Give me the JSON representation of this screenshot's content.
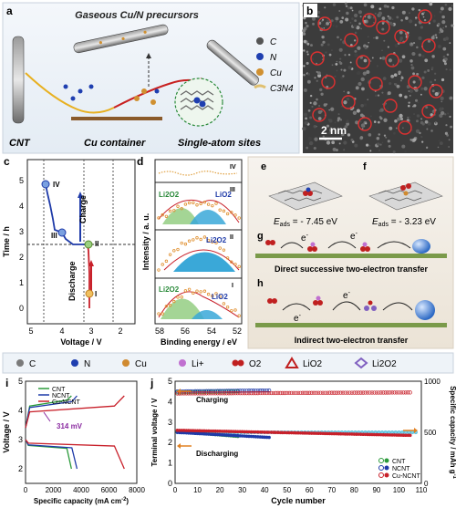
{
  "panel_a": {
    "label": "a",
    "title": "Gaseous Cu/N precursors",
    "cnt_label": "CNT",
    "container_label": "Cu container",
    "sites_label": "Single-atom sites",
    "legend": [
      {
        "symbol": "C",
        "color": "#555555"
      },
      {
        "symbol": "N",
        "color": "#1f3fb0"
      },
      {
        "symbol": "Cu",
        "color": "#d09030"
      },
      {
        "symbol": "C3N4",
        "color": "#e0c070"
      }
    ]
  },
  "panel_b": {
    "label": "b",
    "scale": "2 nm"
  },
  "panel_c": {
    "label": "c",
    "xlabel": "Voltage / V",
    "ylabel": "Time / h",
    "xticks": [
      "5",
      "4",
      "3",
      "2"
    ],
    "yticks": [
      "0",
      "1",
      "2",
      "3",
      "4",
      "5"
    ],
    "charge": "Charge",
    "discharge": "Discharge",
    "points": [
      "IV",
      "III",
      "II",
      "I"
    ]
  },
  "panel_d": {
    "label": "d",
    "xlabel": "Binding energy / eV",
    "ylabel": "Intensity / a. u.",
    "xticks": [
      "58",
      "56",
      "54",
      "52"
    ],
    "stages": [
      "IV",
      "III",
      "II",
      "I"
    ],
    "li2o2": "Li2O2",
    "lio2": "LiO2"
  },
  "panel_e": {
    "label": "e",
    "eads": "E",
    "eads_sub": "ads",
    "eads_value": " = - 7.45 eV"
  },
  "panel_f": {
    "label": "f",
    "eads": "E",
    "eads_sub": "ads",
    "eads_value": " = - 3.23 eV"
  },
  "panel_g": {
    "label": "g",
    "caption": "Direct successive two-electron transfer",
    "e1": "e",
    "e2": "e"
  },
  "panel_h": {
    "label": "h",
    "caption": "Indirect two-electron transfer",
    "e1": "e",
    "e2": "e"
  },
  "legend_row": [
    {
      "name": "C",
      "color": "#7a7a7a"
    },
    {
      "name": "N",
      "color": "#1f3fb0"
    },
    {
      "name": "Cu",
      "color": "#d08a30"
    },
    {
      "name": "Li+",
      "color": "#c070d0"
    },
    {
      "name": "O2",
      "color": "#c02020"
    },
    {
      "name": "LiO2",
      "color": "#c02020"
    },
    {
      "name": "Li2O2",
      "color": "#8060c0"
    }
  ],
  "panel_i": {
    "label": "i",
    "xlabel": "Specific capacity (mA cm",
    "xlabel_sup": "-2",
    "xlabel_end": ")",
    "ylabel": "Voltage / V",
    "annotation": "314 mV",
    "xticks": [
      "0",
      "2000",
      "4000",
      "6000",
      "8000"
    ],
    "yticks": [
      "2",
      "3",
      "4",
      "5"
    ],
    "series": [
      {
        "name": "CNT",
        "color": "#2a9a3a"
      },
      {
        "name": "NCNT",
        "color": "#1e3aa8"
      },
      {
        "name": "Cu-NCNT",
        "color": "#c8202a"
      }
    ]
  },
  "panel_j": {
    "label": "j",
    "xlabel": "Cycle number",
    "ylabel": "Terminal voltage / V",
    "y2label": "Specific capacity / mAh g",
    "y2label_sup": "-1",
    "charging": "Charging",
    "discharging": "Discharging",
    "xticks": [
      "0",
      "10",
      "20",
      "30",
      "40",
      "50",
      "60",
      "70",
      "80",
      "90",
      "100",
      "110"
    ],
    "yticks": [
      "0",
      "1",
      "2",
      "3",
      "4",
      "5"
    ],
    "y2ticks": [
      "0",
      "500",
      "1000"
    ],
    "series": [
      {
        "name": "CNT",
        "color": "#2a9a3a"
      },
      {
        "name": "NCNT",
        "color": "#1e3aa8"
      },
      {
        "name": "Cu-NCNT",
        "color": "#c8202a"
      }
    ]
  },
  "chart_data": [
    {
      "type": "line",
      "id": "i",
      "xlabel": "Specific capacity (mA cm-2)",
      "ylabel": "Voltage / V",
      "xlim": [
        0,
        8000
      ],
      "ylim": [
        1.5,
        5
      ],
      "series": [
        {
          "name": "CNT",
          "discharge_end": 3300,
          "charge_end": 3300,
          "discharge_plateau": 2.7,
          "charge_plateau": 4.2
        },
        {
          "name": "NCNT",
          "discharge_end": 3700,
          "charge_end": 3700,
          "discharge_plateau": 2.72,
          "charge_plateau": 4.15
        },
        {
          "name": "Cu-NCNT",
          "discharge_end": 7100,
          "charge_end": 7100,
          "discharge_plateau": 2.78,
          "charge_plateau": 4.0
        }
      ],
      "annotation": "314 mV"
    },
    {
      "type": "scatter",
      "id": "j",
      "xlabel": "Cycle number",
      "ylabel": "Terminal voltage / V",
      "xlim": [
        0,
        110
      ],
      "ylim": [
        0,
        5
      ],
      "series": [
        {
          "name": "CNT",
          "cycles": 28,
          "charge_v": 4.45,
          "discharge_v": 2.55
        },
        {
          "name": "NCNT",
          "cycles": 42,
          "charge_v": 4.5,
          "discharge_v": 2.5
        },
        {
          "name": "Cu-NCNT",
          "cycles": 105,
          "charge_v": 4.4,
          "discharge_v": 2.6
        }
      ],
      "capacity_line": 500
    }
  ]
}
